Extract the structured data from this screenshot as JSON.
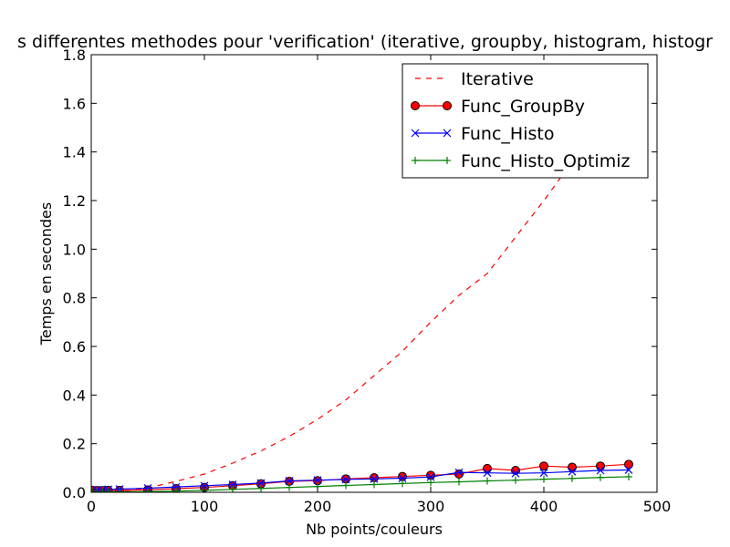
{
  "chart_data": {
    "type": "line",
    "title": "s differentes methodes pour 'verification' (iterative, groupby, histogram, histogr",
    "xlabel": "Nb points/couleurs",
    "ylabel": "Temps en secondes",
    "xlim": [
      0,
      500
    ],
    "ylim": [
      0,
      1.8
    ],
    "xticks": [
      0,
      100,
      200,
      300,
      400,
      500
    ],
    "yticks": [
      0.0,
      0.2,
      0.4,
      0.6,
      0.8,
      1.0,
      1.2,
      1.4,
      1.6,
      1.8
    ],
    "grid": false,
    "legend_position": "top-right",
    "series": [
      {
        "name": "Iterative",
        "color": "#ff0000",
        "line": "dashed",
        "marker": "none",
        "x": [
          1,
          5,
          10,
          15,
          25,
          35,
          50,
          75,
          100,
          125,
          150,
          175,
          200,
          225,
          250,
          275,
          300,
          325,
          350,
          375,
          400,
          425,
          450,
          475
        ],
        "y": [
          0.0,
          0.0,
          0.0,
          0.002,
          0.004,
          0.008,
          0.018,
          0.045,
          0.075,
          0.12,
          0.17,
          0.23,
          0.3,
          0.38,
          0.48,
          0.58,
          0.7,
          0.81,
          0.9,
          1.05,
          1.2,
          1.36,
          1.52,
          1.68
        ]
      },
      {
        "name": "Func_GroupBy",
        "color": "#ff0000",
        "line": "solid",
        "marker": "circle",
        "x": [
          1,
          5,
          10,
          15,
          25,
          50,
          75,
          100,
          125,
          150,
          175,
          200,
          225,
          250,
          275,
          300,
          325,
          350,
          375,
          400,
          425,
          450,
          475
        ],
        "y": [
          0.008,
          0.007,
          0.007,
          0.008,
          0.008,
          0.01,
          0.015,
          0.02,
          0.027,
          0.035,
          0.045,
          0.048,
          0.055,
          0.06,
          0.065,
          0.07,
          0.075,
          0.098,
          0.09,
          0.108,
          0.103,
          0.108,
          0.115
        ]
      },
      {
        "name": "Func_Histo",
        "color": "#0000ff",
        "line": "solid",
        "marker": "x",
        "x": [
          1,
          5,
          10,
          15,
          25,
          50,
          75,
          100,
          125,
          150,
          175,
          200,
          225,
          250,
          275,
          300,
          325,
          350,
          375,
          400,
          425,
          450,
          475
        ],
        "y": [
          0.01,
          0.01,
          0.01,
          0.012,
          0.013,
          0.017,
          0.022,
          0.027,
          0.032,
          0.038,
          0.047,
          0.05,
          0.053,
          0.055,
          0.058,
          0.063,
          0.082,
          0.08,
          0.078,
          0.08,
          0.085,
          0.09,
          0.092
        ]
      },
      {
        "name": "Func_Histo_Optimiz",
        "color": "#008000",
        "line": "solid",
        "marker": "plus",
        "x": [
          1,
          5,
          10,
          15,
          25,
          50,
          75,
          100,
          125,
          150,
          175,
          200,
          225,
          250,
          275,
          300,
          325,
          350,
          375,
          400,
          425,
          450,
          475
        ],
        "y": [
          0.001,
          0.001,
          0.001,
          0.002,
          0.002,
          0.003,
          0.005,
          0.008,
          0.012,
          0.016,
          0.02,
          0.024,
          0.028,
          0.032,
          0.036,
          0.04,
          0.043,
          0.047,
          0.05,
          0.054,
          0.057,
          0.061,
          0.064
        ]
      }
    ]
  }
}
